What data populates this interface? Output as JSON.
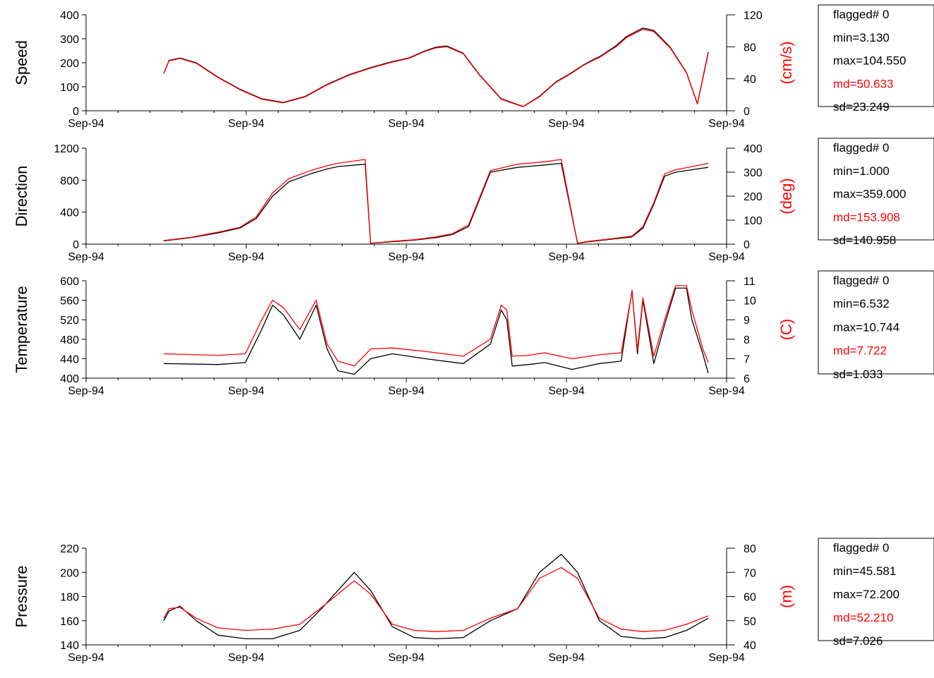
{
  "colors": {
    "raw": "#000000",
    "smoothed": "#ff0000",
    "axis": "#000000"
  },
  "x_tick_labels": [
    "Sep-94",
    "Sep-94",
    "Sep-94",
    "Sep-94",
    "Sep-94"
  ],
  "chart_data": [
    {
      "type": "line",
      "ylabel": "Speed",
      "y2label": "(cm/s)",
      "ylim": [
        0,
        400
      ],
      "yticks": [
        "0",
        "100",
        "200",
        "300",
        "400"
      ],
      "y2lim": [
        0,
        120
      ],
      "y2ticks": [
        "0",
        "40",
        "80",
        "120"
      ],
      "stats": {
        "flagged": "flagged# 0",
        "min": "min=3.130",
        "max": "max=104.550",
        "md": "md=50.633",
        "sd": "sd=23.249"
      },
      "x": [
        0.0,
        0.01,
        0.03,
        0.06,
        0.1,
        0.14,
        0.18,
        0.22,
        0.26,
        0.3,
        0.34,
        0.38,
        0.42,
        0.45,
        0.48,
        0.5,
        0.52,
        0.55,
        0.58,
        0.62,
        0.66,
        0.69,
        0.72,
        0.75,
        0.77,
        0.79,
        0.8,
        0.81,
        0.82,
        0.83,
        0.85,
        0.88,
        0.9,
        0.93,
        0.96,
        0.98,
        1.0
      ],
      "series": [
        {
          "values": [
            155,
            210,
            220,
            200,
            140,
            90,
            50,
            35,
            60,
            110,
            150,
            180,
            205,
            220,
            250,
            265,
            270,
            240,
            150,
            50,
            18,
            60,
            120,
            160,
            190,
            215,
            225,
            240,
            255,
            270,
            310,
            345,
            335,
            265,
            160,
            30,
            245
          ]
        },
        {
          "values": [
            155,
            208,
            218,
            198,
            138,
            88,
            48,
            33,
            58,
            108,
            148,
            178,
            203,
            218,
            248,
            262,
            267,
            238,
            148,
            48,
            17,
            58,
            118,
            158,
            188,
            212,
            222,
            237,
            252,
            266,
            305,
            340,
            330,
            262,
            158,
            28,
            240
          ]
        }
      ]
    },
    {
      "type": "line",
      "ylabel": "Direction",
      "y2label": "(deg)",
      "ylim": [
        0,
        1200
      ],
      "yticks": [
        "0",
        "400",
        "800",
        "1200"
      ],
      "y2lim": [
        0,
        400
      ],
      "y2ticks": [
        "0",
        "100",
        "200",
        "300",
        "400"
      ],
      "stats": {
        "flagged": "flagged# 0",
        "min": "min=1.000",
        "max": "max=359.000",
        "md": "md=153.908",
        "sd": "sd=140.958"
      },
      "x": [
        0.0,
        0.05,
        0.1,
        0.14,
        0.17,
        0.2,
        0.23,
        0.27,
        0.3,
        0.32,
        0.37,
        0.38,
        0.42,
        0.46,
        0.5,
        0.53,
        0.56,
        0.6,
        0.65,
        0.7,
        0.73,
        0.76,
        0.78,
        0.82,
        0.86,
        0.88,
        0.9,
        0.92,
        0.94,
        0.97,
        1.0
      ],
      "series": [
        {
          "values": [
            40,
            80,
            140,
            200,
            320,
            600,
            780,
            880,
            940,
            970,
            1000,
            10,
            30,
            50,
            80,
            120,
            220,
            900,
            960,
            990,
            1010,
            10,
            30,
            60,
            90,
            200,
            500,
            850,
            900,
            930,
            960
          ]
        },
        {
          "values": [
            45,
            85,
            150,
            210,
            340,
            640,
            820,
            920,
            980,
            1010,
            1060,
            10,
            35,
            55,
            90,
            130,
            240,
            920,
            1000,
            1030,
            1060,
            12,
            35,
            65,
            100,
            220,
            520,
            880,
            930,
            970,
            1010
          ]
        }
      ]
    },
    {
      "type": "line",
      "ylabel": "Temperature",
      "y2label": "(C)",
      "ylim": [
        400,
        600
      ],
      "yticks": [
        "400",
        "440",
        "480",
        "520",
        "560",
        "600"
      ],
      "y2lim": [
        6,
        11
      ],
      "y2ticks": [
        "6",
        "7",
        "8",
        "9",
        "10",
        "11"
      ],
      "stats": {
        "flagged": "flagged# 0",
        "min": "min=6.532",
        "max": "max=10.744",
        "md": "md=7.722",
        "sd": "sd=1.033"
      },
      "x": [
        0.0,
        0.1,
        0.15,
        0.18,
        0.2,
        0.22,
        0.25,
        0.28,
        0.3,
        0.32,
        0.35,
        0.38,
        0.42,
        0.48,
        0.55,
        0.6,
        0.62,
        0.63,
        0.64,
        0.67,
        0.7,
        0.75,
        0.8,
        0.84,
        0.86,
        0.87,
        0.88,
        0.9,
        0.92,
        0.94,
        0.96,
        0.97,
        0.99,
        1.0
      ],
      "series": [
        {
          "values": [
            430,
            428,
            432,
            500,
            550,
            530,
            480,
            550,
            460,
            415,
            408,
            440,
            450,
            440,
            430,
            470,
            540,
            520,
            425,
            428,
            432,
            418,
            430,
            435,
            580,
            450,
            560,
            430,
            510,
            585,
            585,
            520,
            450,
            410
          ]
        },
        {
          "values": [
            450,
            447,
            450,
            520,
            560,
            545,
            500,
            560,
            470,
            435,
            425,
            460,
            462,
            455,
            445,
            480,
            550,
            540,
            445,
            447,
            452,
            440,
            448,
            452,
            578,
            458,
            565,
            445,
            520,
            590,
            590,
            540,
            460,
            432
          ]
        }
      ]
    },
    {
      "type": "line",
      "ylabel": "Pressure",
      "y2label": "(m)",
      "ylim": [
        140,
        220
      ],
      "yticks": [
        "140",
        "160",
        "180",
        "200",
        "220"
      ],
      "y2lim": [
        40,
        80
      ],
      "y2ticks": [
        "40",
        "50",
        "60",
        "70",
        "80"
      ],
      "stats": {
        "flagged": "flagged# 0",
        "min": "min=45.581",
        "max": "max=72.200",
        "md": "md=52.210",
        "sd": "sd=7.026"
      },
      "x": [
        0.0,
        0.01,
        0.03,
        0.06,
        0.1,
        0.15,
        0.2,
        0.25,
        0.29,
        0.32,
        0.35,
        0.38,
        0.42,
        0.46,
        0.5,
        0.55,
        0.6,
        0.65,
        0.69,
        0.73,
        0.76,
        0.8,
        0.84,
        0.88,
        0.92,
        0.96,
        1.0
      ],
      "series": [
        {
          "values": [
            160,
            168,
            172,
            160,
            148,
            145,
            145,
            152,
            170,
            185,
            200,
            185,
            155,
            146,
            145,
            146,
            160,
            170,
            200,
            215,
            200,
            160,
            147,
            145,
            146,
            152,
            162
          ]
        },
        {
          "values": [
            162,
            170,
            171,
            162,
            154,
            152,
            153,
            157,
            171,
            182,
            193,
            182,
            157,
            152,
            151,
            152,
            162,
            170,
            195,
            204,
            195,
            162,
            153,
            151,
            152,
            157,
            164
          ]
        }
      ]
    }
  ]
}
